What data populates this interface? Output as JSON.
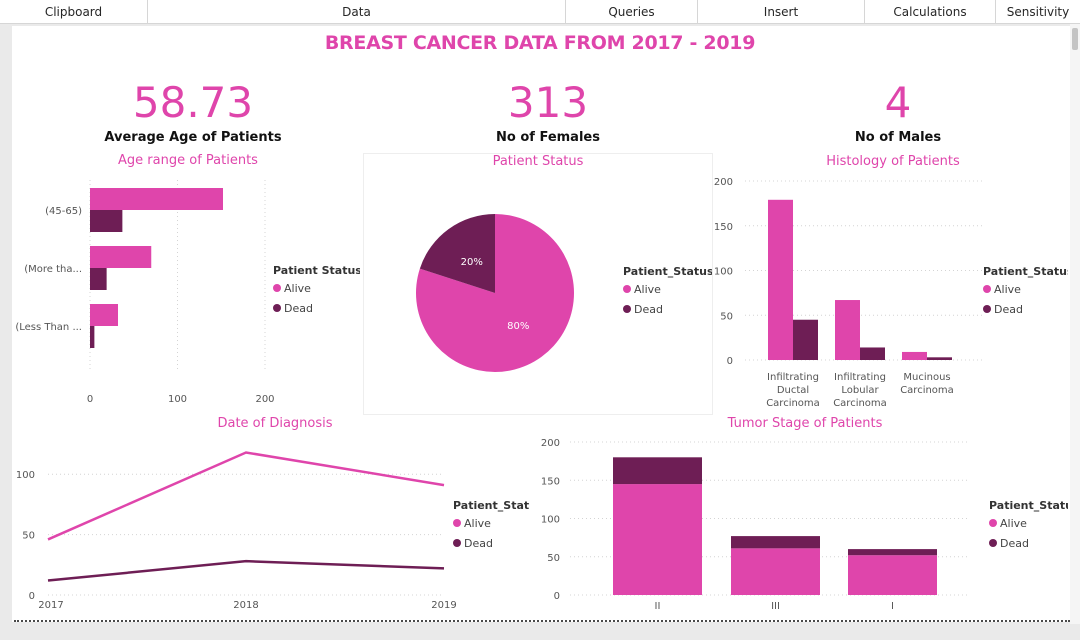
{
  "ribbon": {
    "groups": [
      "Clipboard",
      "Data",
      "Queries",
      "Insert",
      "Calculations",
      "Sensitivity"
    ]
  },
  "page": {
    "title": "BREAST CANCER DATA FROM 2017 - 2019"
  },
  "kpis": [
    {
      "value": "58.73",
      "label": "Average Age of Patients"
    },
    {
      "value": "313",
      "label": "No of Females"
    },
    {
      "value": "4",
      "label": "No of Males"
    }
  ],
  "colors": {
    "alive": "#df45ab",
    "dead": "#6e1e55",
    "grid": "#d4d4d4",
    "title": "#df45ab"
  },
  "chart_data": [
    {
      "id": "age",
      "type": "bar",
      "orientation": "horizontal",
      "title": "Age range of Patients",
      "categories": [
        "(45-65)",
        "(More tha...",
        "(Less Than ..."
      ],
      "series": [
        {
          "name": "Alive",
          "values": [
            152,
            70,
            32
          ]
        },
        {
          "name": "Dead",
          "values": [
            37,
            19,
            5
          ]
        }
      ],
      "xlim": [
        0,
        200
      ],
      "xticks": [
        "0",
        "100",
        "200"
      ],
      "legend_title": "Patient Status",
      "legend_position": "right"
    },
    {
      "id": "status",
      "type": "pie",
      "title": "Patient Status",
      "slices": [
        {
          "name": "Alive",
          "value": 80,
          "label": "80%"
        },
        {
          "name": "Dead",
          "value": 20,
          "label": "20%"
        }
      ],
      "legend_title": "Patient_Status",
      "legend_position": "right"
    },
    {
      "id": "histology",
      "type": "bar",
      "orientation": "vertical",
      "title": "Histology of Patients",
      "categories": [
        [
          "Infiltrating",
          "Ductal",
          "Carcinoma"
        ],
        [
          "Infiltrating",
          "Lobular",
          "Carcinoma"
        ],
        [
          "Mucinous",
          "Carcinoma"
        ]
      ],
      "series": [
        {
          "name": "Alive",
          "values": [
            179,
            67,
            9
          ]
        },
        {
          "name": "Dead",
          "values": [
            45,
            14,
            3
          ]
        }
      ],
      "ylim": [
        0,
        200
      ],
      "yticks": [
        "0",
        "50",
        "100",
        "150",
        "200"
      ],
      "legend_title": "Patient_Status",
      "legend_position": "right"
    },
    {
      "id": "diagnosis",
      "type": "line",
      "title": "Date of Diagnosis",
      "x": [
        "2017",
        "2018",
        "2019"
      ],
      "series": [
        {
          "name": "Alive",
          "values": [
            46,
            118,
            91
          ]
        },
        {
          "name": "Dead",
          "values": [
            12,
            28,
            22
          ]
        }
      ],
      "ylim": [
        0,
        130
      ],
      "yticks": [
        "0",
        "50",
        "100"
      ],
      "legend_title": "Patient_Status",
      "legend_position": "right"
    },
    {
      "id": "tumor",
      "type": "bar",
      "stacked": true,
      "title": "Tumor Stage of Patients",
      "categories": [
        "II",
        "III",
        "I"
      ],
      "series": [
        {
          "name": "Alive",
          "values": [
            145,
            61,
            52
          ]
        },
        {
          "name": "Dead",
          "values": [
            35,
            16,
            8
          ]
        }
      ],
      "ylim": [
        0,
        200
      ],
      "yticks": [
        "0",
        "50",
        "100",
        "150",
        "200"
      ],
      "legend_title": "Patient_Status",
      "legend_position": "right"
    }
  ]
}
